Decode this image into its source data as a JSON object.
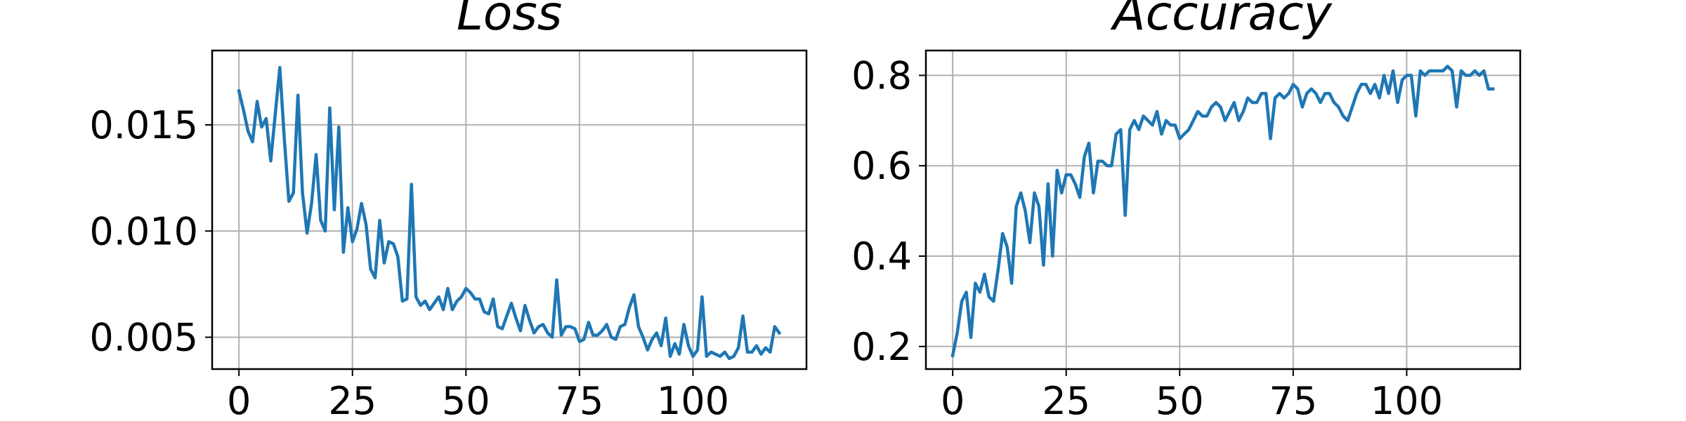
{
  "chart_data": [
    {
      "type": "line",
      "title": "Loss",
      "xlabel": "",
      "ylabel": "",
      "xlim": [
        -5.9,
        125
      ],
      "ylim": [
        0.0035,
        0.0185
      ],
      "xticks": [
        0,
        25,
        50,
        75,
        100
      ],
      "yticks": [
        0.005,
        0.01,
        0.015
      ],
      "ytick_labels": [
        "0.005",
        "0.010",
        "0.015"
      ],
      "grid": true,
      "color": "#1f77b4",
      "series": [
        {
          "x": [
            0,
            1,
            2,
            3,
            4,
            5,
            6,
            7,
            8,
            9,
            10,
            11,
            12,
            13,
            14,
            15,
            16,
            17,
            18,
            19,
            20,
            21,
            22,
            23,
            24,
            25,
            26,
            27,
            28,
            29,
            30,
            31,
            32,
            33,
            34,
            35,
            36,
            37,
            38,
            39,
            40,
            41,
            42,
            43,
            44,
            45,
            46,
            47,
            48,
            49,
            50,
            51,
            52,
            53,
            54,
            55,
            56,
            57,
            58,
            59,
            60,
            61,
            62,
            63,
            64,
            65,
            66,
            67,
            68,
            69,
            70,
            71,
            72,
            73,
            74,
            75,
            76,
            77,
            78,
            79,
            80,
            81,
            82,
            83,
            84,
            85,
            86,
            87,
            88,
            89,
            90,
            91,
            92,
            93,
            94,
            95,
            96,
            97,
            98,
            99,
            100,
            101,
            102,
            103,
            104,
            105,
            106,
            107,
            108,
            109,
            110,
            111,
            112,
            113,
            114,
            115,
            116,
            117,
            118,
            119
          ],
          "y": [
            0.0166,
            0.0157,
            0.0147,
            0.0142,
            0.0161,
            0.0149,
            0.0153,
            0.0133,
            0.0155,
            0.0177,
            0.0143,
            0.0114,
            0.0118,
            0.0164,
            0.0118,
            0.0099,
            0.0113,
            0.0136,
            0.0105,
            0.01,
            0.0158,
            0.011,
            0.0149,
            0.009,
            0.0111,
            0.0095,
            0.0101,
            0.0113,
            0.0103,
            0.0082,
            0.0078,
            0.0105,
            0.0085,
            0.0095,
            0.0094,
            0.0088,
            0.0067,
            0.0068,
            0.0122,
            0.0069,
            0.0065,
            0.0067,
            0.0063,
            0.0066,
            0.0069,
            0.0063,
            0.0073,
            0.0063,
            0.0067,
            0.0069,
            0.0073,
            0.0071,
            0.0068,
            0.0068,
            0.0062,
            0.0061,
            0.0068,
            0.0055,
            0.0054,
            0.006,
            0.0066,
            0.0059,
            0.0053,
            0.0065,
            0.0058,
            0.0052,
            0.0055,
            0.0056,
            0.0052,
            0.005,
            0.0077,
            0.0051,
            0.0055,
            0.0055,
            0.0054,
            0.0048,
            0.0049,
            0.0057,
            0.0051,
            0.0051,
            0.0053,
            0.0056,
            0.005,
            0.0049,
            0.0055,
            0.0056,
            0.0064,
            0.007,
            0.0055,
            0.005,
            0.0044,
            0.0049,
            0.0052,
            0.0046,
            0.0059,
            0.0041,
            0.0047,
            0.0042,
            0.0056,
            0.0046,
            0.0041,
            0.0044,
            0.0069,
            0.0041,
            0.0043,
            0.0042,
            0.0041,
            0.0043,
            0.004,
            0.0041,
            0.0045,
            0.006,
            0.0043,
            0.0043,
            0.0046,
            0.0042,
            0.0045,
            0.0043,
            0.0055,
            0.0052
          ]
        }
      ]
    },
    {
      "type": "line",
      "title": "Accuracy",
      "xlabel": "",
      "ylabel": "",
      "xlim": [
        -5.9,
        125
      ],
      "ylim": [
        0.15,
        0.855
      ],
      "xticks": [
        0,
        25,
        50,
        75,
        100
      ],
      "yticks": [
        0.2,
        0.4,
        0.6,
        0.8
      ],
      "ytick_labels": [
        "0.2",
        "0.4",
        "0.6",
        "0.8"
      ],
      "grid": true,
      "color": "#1f77b4",
      "series": [
        {
          "x": [
            0,
            1,
            2,
            3,
            4,
            5,
            6,
            7,
            8,
            9,
            10,
            11,
            12,
            13,
            14,
            15,
            16,
            17,
            18,
            19,
            20,
            21,
            22,
            23,
            24,
            25,
            26,
            27,
            28,
            29,
            30,
            31,
            32,
            33,
            34,
            35,
            36,
            37,
            38,
            39,
            40,
            41,
            42,
            43,
            44,
            45,
            46,
            47,
            48,
            49,
            50,
            51,
            52,
            53,
            54,
            55,
            56,
            57,
            58,
            59,
            60,
            61,
            62,
            63,
            64,
            65,
            66,
            67,
            68,
            69,
            70,
            71,
            72,
            73,
            74,
            75,
            76,
            77,
            78,
            79,
            80,
            81,
            82,
            83,
            84,
            85,
            86,
            87,
            88,
            89,
            90,
            91,
            92,
            93,
            94,
            95,
            96,
            97,
            98,
            99,
            100,
            101,
            102,
            103,
            104,
            105,
            106,
            107,
            108,
            109,
            110,
            111,
            112,
            113,
            114,
            115,
            116,
            117,
            118,
            119
          ],
          "y": [
            0.18,
            0.23,
            0.3,
            0.32,
            0.22,
            0.34,
            0.32,
            0.36,
            0.31,
            0.3,
            0.37,
            0.45,
            0.42,
            0.34,
            0.51,
            0.54,
            0.5,
            0.43,
            0.54,
            0.51,
            0.38,
            0.56,
            0.4,
            0.59,
            0.54,
            0.58,
            0.58,
            0.56,
            0.53,
            0.62,
            0.65,
            0.54,
            0.61,
            0.61,
            0.6,
            0.6,
            0.67,
            0.68,
            0.49,
            0.68,
            0.7,
            0.68,
            0.71,
            0.7,
            0.69,
            0.72,
            0.67,
            0.7,
            0.69,
            0.69,
            0.66,
            0.67,
            0.68,
            0.7,
            0.72,
            0.71,
            0.71,
            0.73,
            0.74,
            0.73,
            0.7,
            0.72,
            0.74,
            0.7,
            0.72,
            0.75,
            0.74,
            0.74,
            0.76,
            0.76,
            0.66,
            0.75,
            0.76,
            0.75,
            0.76,
            0.78,
            0.77,
            0.73,
            0.76,
            0.77,
            0.76,
            0.74,
            0.76,
            0.76,
            0.74,
            0.73,
            0.71,
            0.7,
            0.73,
            0.76,
            0.78,
            0.78,
            0.76,
            0.78,
            0.75,
            0.8,
            0.76,
            0.81,
            0.74,
            0.79,
            0.8,
            0.8,
            0.71,
            0.81,
            0.8,
            0.81,
            0.81,
            0.81,
            0.81,
            0.82,
            0.81,
            0.73,
            0.81,
            0.8,
            0.8,
            0.81,
            0.8,
            0.81,
            0.77,
            0.77
          ]
        }
      ]
    }
  ]
}
